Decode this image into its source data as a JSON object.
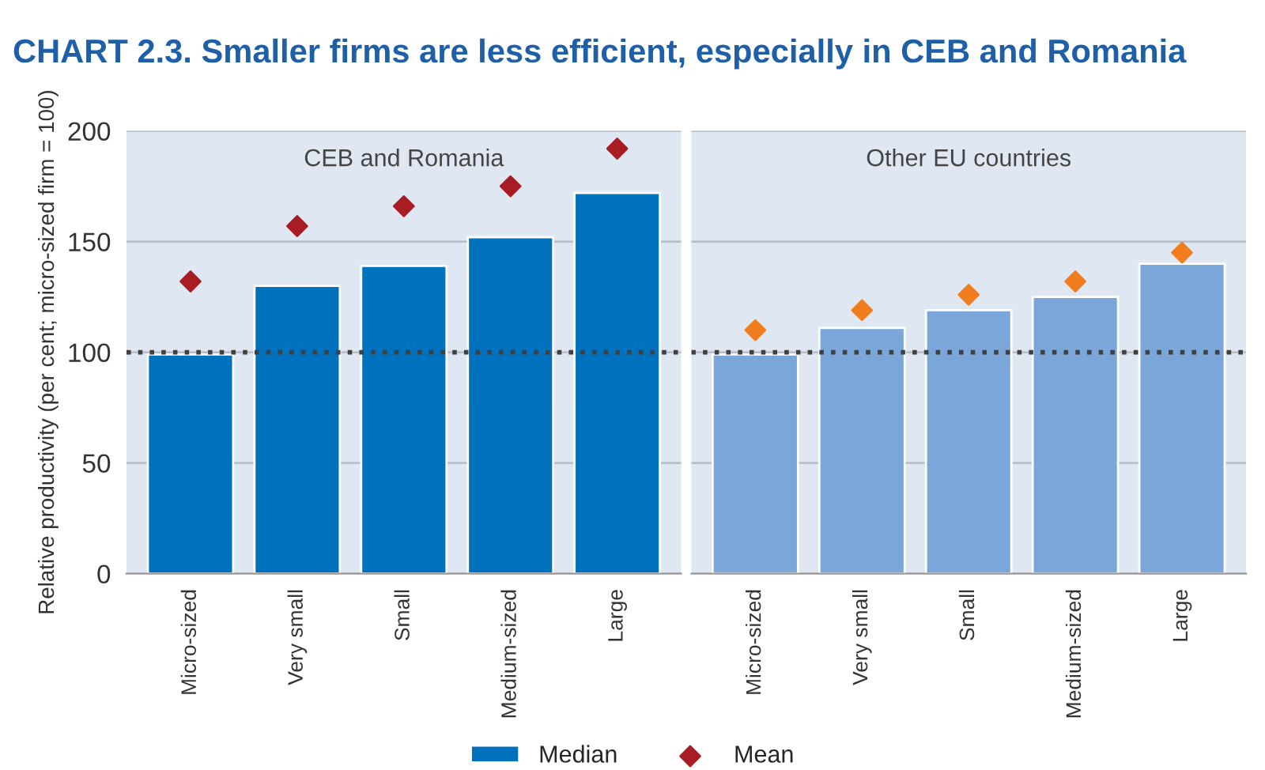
{
  "chart_data": [
    {
      "type": "bar",
      "title": "CHART 2.3. Smaller firms are less efficient, especially in CEB and Romania",
      "ylabel": "Relative productivity (per cent; micro-sized firm = 100)",
      "annotations": [
        "CEB and Romania"
      ],
      "categories": [
        "Micro-sized",
        "Very small",
        "Small",
        "Medium-sized",
        "Large"
      ],
      "series": [
        {
          "name": "Median",
          "color": "#0071bc",
          "values": [
            99,
            130,
            139,
            152,
            172
          ]
        },
        {
          "name": "Mean",
          "type": "scatter",
          "color": "#a81c24",
          "values": [
            132,
            157,
            166,
            175,
            192
          ]
        }
      ],
      "ylim": [
        0,
        200
      ],
      "yticks": [
        0,
        50,
        100,
        150,
        200
      ],
      "grid": "y",
      "legend": "bottom",
      "marker": "diamond",
      "ref_lines": [
        {
          "axis": "y",
          "value": 100,
          "color": "#404040",
          "line_style": "dotted"
        }
      ]
    },
    {
      "type": "bar",
      "annotations": [
        "Other EU countries"
      ],
      "categories": [
        "Micro-sized",
        "Very small",
        "Small",
        "Medium-sized",
        "Large"
      ],
      "series": [
        {
          "color": "#7ba6d9",
          "values": [
            99,
            111,
            119,
            125,
            140
          ]
        },
        {
          "type": "scatter",
          "color": "#f07d1e",
          "values": [
            110,
            119,
            126,
            132,
            145
          ]
        }
      ],
      "ylim": [
        0,
        200
      ],
      "yticks": [
        0,
        50,
        100,
        150,
        200
      ],
      "grid": "y",
      "marker": "diamond",
      "tick_labels": "x",
      "ref_lines": [
        {
          "axis": "y",
          "value": 100,
          "color": "#404040",
          "line_style": "dotted"
        }
      ]
    }
  ]
}
